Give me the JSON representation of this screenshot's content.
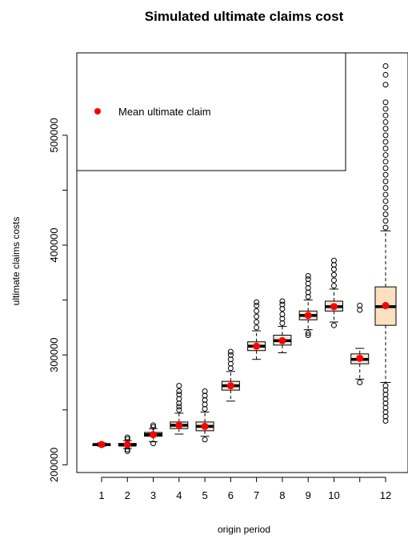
{
  "chart_data": {
    "type": "boxplot",
    "title": "Simulated ultimate claims cost",
    "xlabel": "origin period",
    "ylabel": "ultimate claims costs",
    "categories": [
      "1",
      "2",
      "3",
      "4",
      "5",
      "6",
      "7",
      "8",
      "9",
      "10",
      "",
      "12"
    ],
    "y_ticks": [
      "200000",
      "300000",
      "400000",
      "500000"
    ],
    "ylim": [
      193000,
      575000
    ],
    "legend": {
      "label": "Mean ultimate claim",
      "position": "top-left"
    },
    "colors": {
      "box_default": "#f3ead8",
      "box_last": "#fce0c0",
      "mean": "#ff0000"
    },
    "series": [
      {
        "category": "1",
        "q1": 218000,
        "median": 218500,
        "q3": 219000,
        "wlow": 217000,
        "whigh": 220000,
        "mean": 218500,
        "out_low": [],
        "out_high": []
      },
      {
        "category": "2",
        "q1": 217500,
        "median": 218000,
        "q3": 219500,
        "wlow": 215000,
        "whigh": 222000,
        "mean": 218500,
        "out_low": [
          214000,
          212500
        ],
        "out_high": [
          223500,
          225000
        ]
      },
      {
        "category": "3",
        "q1": 226000,
        "median": 227500,
        "q3": 229500,
        "wlow": 221000,
        "whigh": 233000,
        "mean": 227500,
        "out_low": [
          219500
        ],
        "out_high": [
          234500,
          236000
        ]
      },
      {
        "category": "4",
        "q1": 233000,
        "median": 236000,
        "q3": 239000,
        "wlow": 228000,
        "whigh": 247000,
        "mean": 236000,
        "out_low": [],
        "out_high": [
          250000,
          253000,
          256000,
          260000,
          264000,
          267000,
          272000
        ]
      },
      {
        "category": "5",
        "q1": 231000,
        "median": 235000,
        "q3": 239000,
        "wlow": 226000,
        "whigh": 248000,
        "mean": 235000,
        "out_low": [
          223000
        ],
        "out_high": [
          251000,
          255000,
          259000,
          263000,
          267000
        ]
      },
      {
        "category": "6",
        "q1": 268000,
        "median": 272000,
        "q3": 276000,
        "wlow": 258000,
        "whigh": 285000,
        "mean": 272000,
        "out_low": [],
        "out_high": [
          288000,
          292000,
          296000,
          300000,
          303000
        ]
      },
      {
        "category": "7",
        "q1": 304000,
        "median": 308000,
        "q3": 312000,
        "wlow": 296000,
        "whigh": 322000,
        "mean": 308000,
        "out_low": [],
        "out_high": [
          325000,
          330000,
          335000,
          340000,
          345000,
          348000
        ]
      },
      {
        "category": "8",
        "q1": 309000,
        "median": 313000,
        "q3": 318000,
        "wlow": 302000,
        "whigh": 326000,
        "mean": 313000,
        "out_low": [],
        "out_high": [
          329000,
          333000,
          337000,
          342000,
          346000,
          349000
        ]
      },
      {
        "category": "9",
        "q1": 332000,
        "median": 336000,
        "q3": 340000,
        "wlow": 323000,
        "whigh": 350000,
        "mean": 336000,
        "out_low": [
          318000,
          320000
        ],
        "out_high": [
          353000,
          357000,
          361000,
          365000,
          369000,
          372000
        ]
      },
      {
        "category": "10",
        "q1": 340000,
        "median": 344000,
        "q3": 349000,
        "wlow": 330000,
        "whigh": 360000,
        "mean": 344000,
        "out_low": [
          327000
        ],
        "out_high": [
          363000,
          368000,
          373000,
          378000,
          382000,
          386000
        ]
      },
      {
        "category": "",
        "q1": 292000,
        "median": 296000,
        "q3": 301000,
        "wlow": 278000,
        "whigh": 306000,
        "mean": 297000,
        "out_low": [
          275000
        ],
        "out_high": [
          341000,
          345000
        ]
      },
      {
        "category": "12",
        "q1": 327000,
        "median": 344000,
        "q3": 362000,
        "wlow": 275000,
        "whigh": 413000,
        "mean": 345000,
        "out_low": [
          240000,
          244000,
          248000,
          252000,
          256000,
          260000,
          264000,
          268000,
          272000
        ],
        "out_high": [
          416000,
          422000,
          428000,
          434000,
          440000,
          446000,
          452000,
          458000,
          464000,
          470000,
          476000,
          482000,
          488000,
          494000,
          500000,
          506000,
          512000,
          518000,
          524000,
          530000,
          546000,
          555000,
          563000
        ]
      }
    ]
  }
}
